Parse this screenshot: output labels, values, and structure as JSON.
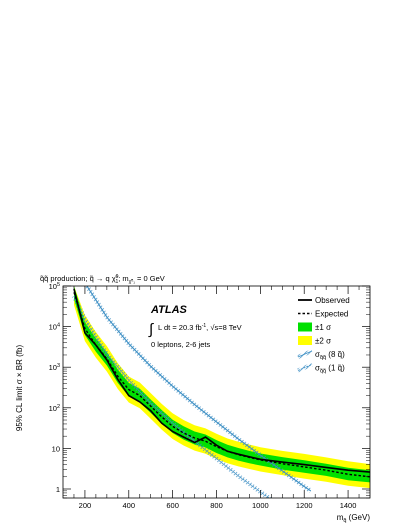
{
  "chart_data": {
    "type": "line",
    "title": "q̃q̃* production; q̃ → q χ̃⁰₁; m(χ̃⁰₁) = 0 GeV",
    "title_parts": {
      "pre": "q̃q̃",
      "mid": " production; q̃ → q χ̃",
      "sup": "0",
      "sub": "1",
      "post": "; m",
      "post_sub": "χ̃⁰₁",
      "tail": " = 0 GeV"
    },
    "xlabel": "m",
    "xlabel_sub": "q̃",
    "xlabel_unit": " (GeV)",
    "ylabel": "95% CL limit σ × BR (fb)",
    "xlim": [
      100,
      1500
    ],
    "ylim": [
      0.6,
      100000
    ],
    "yscale": "log",
    "x_ticks": [
      200,
      400,
      600,
      800,
      1000,
      1200,
      1400
    ],
    "x_tick_labels": [
      "200",
      "400",
      "600",
      "800",
      "1000",
      "1200",
      "1400"
    ],
    "y_ticks": [
      1,
      10,
      100,
      1000,
      10000,
      100000
    ],
    "y_tick_labels": [
      {
        "base": "1",
        "exp": ""
      },
      {
        "base": "10",
        "exp": ""
      },
      {
        "base": "10",
        "exp": "2"
      },
      {
        "base": "10",
        "exp": "3"
      },
      {
        "base": "10",
        "exp": "4"
      },
      {
        "base": "10",
        "exp": "5"
      }
    ],
    "grid": false,
    "legend_position": "top-right",
    "annotations": {
      "experiment": "ATLAS",
      "integral_sign": "∫",
      "lumi": "L dt = 20.3 fb",
      "lumi_sup": "-1",
      "energy": ", √s=8 TeV",
      "selection": "0 leptons, 2-6 jets"
    },
    "legend": [
      {
        "label": "Observed",
        "key": "observed"
      },
      {
        "label": "Expected",
        "key": "expected"
      },
      {
        "label": "±1 σ",
        "key": "band1"
      },
      {
        "label": "±2 σ",
        "key": "band2"
      },
      {
        "label": "σ",
        "sub": "q̃q̃",
        "suffix": " (8 q̃)",
        "key": "theory8"
      },
      {
        "label": "σ",
        "sub": "q̃q̃",
        "suffix": " (1 q̃)",
        "key": "theory1"
      }
    ],
    "colors": {
      "observed": "#000000",
      "expected": "#000000",
      "band1": "#00e000",
      "band2": "#ffff00",
      "theory8": "#3d8fc4",
      "theory1": "#3d8fc4"
    },
    "series": [
      {
        "key": "observed",
        "x": [
          150,
          200,
          250,
          300,
          350,
          400,
          450,
          500,
          550,
          600,
          650,
          700,
          750,
          800,
          850,
          900,
          950,
          1000,
          1100,
          1200,
          1300,
          1400,
          1500
        ],
        "values": [
          85000,
          7000,
          3500,
          1500,
          500,
          200,
          140,
          85,
          42,
          26,
          19,
          14,
          19,
          12,
          8.5,
          7.2,
          6.2,
          5.4,
          4.6,
          4.0,
          3.4,
          2.9,
          2.6
        ]
      },
      {
        "key": "expected",
        "x": [
          150,
          200,
          250,
          300,
          350,
          400,
          450,
          500,
          550,
          600,
          650,
          700,
          750,
          800,
          850,
          900,
          950,
          1000,
          1100,
          1200,
          1300,
          1400,
          1500
        ],
        "values": [
          70000,
          9000,
          3500,
          1600,
          600,
          280,
          200,
          110,
          60,
          35,
          24,
          18,
          15,
          11,
          8.5,
          7.0,
          6.0,
          5.2,
          4.2,
          3.5,
          2.9,
          2.3,
          2.0
        ]
      },
      {
        "key": "band1",
        "x": [
          150,
          200,
          250,
          300,
          350,
          400,
          450,
          500,
          550,
          600,
          650,
          700,
          750,
          800,
          850,
          900,
          950,
          1000,
          1100,
          1200,
          1300,
          1400,
          1500
        ],
        "lower": [
          48000,
          6200,
          2400,
          1100,
          410,
          190,
          135,
          75,
          41,
          24,
          16.5,
          12.5,
          10.5,
          7.7,
          6.0,
          5.0,
          4.3,
          3.8,
          3.0,
          2.5,
          2.1,
          1.65,
          1.45
        ],
        "upper": [
          100000,
          13000,
          5100,
          2350,
          880,
          410,
          295,
          160,
          88,
          51,
          35,
          26,
          22,
          16,
          12.3,
          10.2,
          8.7,
          7.5,
          6.1,
          5.1,
          4.2,
          3.35,
          2.9
        ]
      },
      {
        "key": "band2",
        "x": [
          150,
          200,
          250,
          300,
          350,
          400,
          450,
          500,
          550,
          600,
          650,
          700,
          750,
          800,
          850,
          900,
          950,
          1000,
          1100,
          1200,
          1300,
          1400,
          1500
        ],
        "lower": [
          34000,
          4400,
          1700,
          780,
          290,
          135,
          97,
          54,
          29,
          17,
          11.8,
          8.8,
          7.4,
          5.5,
          4.3,
          3.6,
          3.1,
          2.7,
          2.2,
          1.8,
          1.5,
          1.2,
          1.05
        ],
        "upper": [
          100000,
          19000,
          7300,
          3300,
          1250,
          590,
          420,
          230,
          125,
          73,
          50,
          37,
          31,
          23,
          17.5,
          14.5,
          12.4,
          10.7,
          8.7,
          7.3,
          6.0,
          4.8,
          4.1
        ]
      },
      {
        "key": "theory8",
        "x": [
          150,
          200,
          300,
          400,
          500,
          600,
          700,
          800,
          900,
          1000,
          1100,
          1200,
          1230
        ],
        "values": [
          450000,
          120000,
          17000,
          3800,
          1050,
          340,
          120,
          45,
          17,
          6.8,
          2.8,
          1.15,
          0.9
        ]
      },
      {
        "key": "theory1",
        "x": [
          150,
          200,
          300,
          400,
          500,
          600,
          700,
          800,
          900,
          1000,
          1100
        ],
        "values": [
          56000,
          15000,
          2100,
          480,
          130,
          42,
          15,
          5.6,
          2.1,
          0.85,
          0.35
        ]
      }
    ]
  }
}
